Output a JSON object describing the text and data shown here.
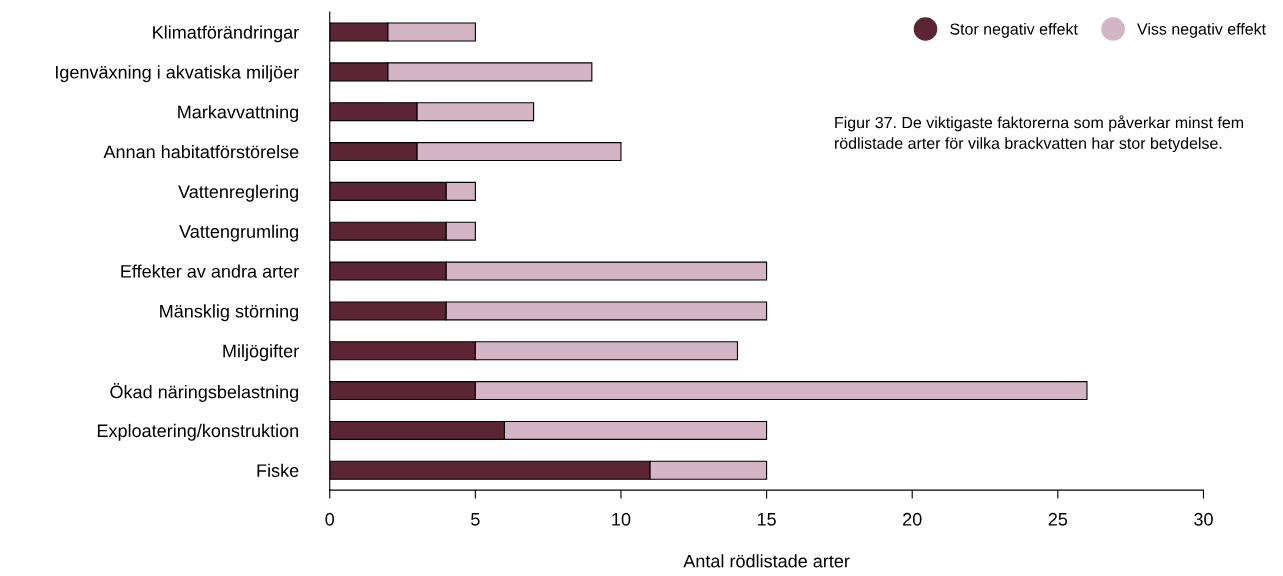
{
  "chart_data": {
    "type": "bar",
    "orientation": "horizontal",
    "stacked": true,
    "categories": [
      "Klimatförändringar",
      "Igenväxning i akvatiska miljöer",
      "Markavvattning",
      "Annan habitatförstörelse",
      "Vattenreglering",
      "Vattengrumling",
      "Effekter av andra arter",
      "Mänsklig störning",
      "Miljögifter",
      "Ökad näringsbelastning",
      "Exploatering/konstruktion",
      "Fiske"
    ],
    "series": [
      {
        "name": "Stor negativ effekt",
        "color": "#5c2535",
        "values": [
          2,
          2,
          3,
          3,
          4,
          4,
          4,
          4,
          5,
          5,
          6,
          11
        ]
      },
      {
        "name": "Viss negativ effekt",
        "color": "#d4b5c5",
        "values": [
          3,
          7,
          4,
          7,
          1,
          1,
          11,
          11,
          9,
          21,
          9,
          4
        ]
      }
    ],
    "xlabel": "Antal rödlistade arter",
    "xlim": [
      0,
      30
    ],
    "xticks": [
      0,
      5,
      10,
      15,
      20,
      25,
      30
    ],
    "grid": false,
    "legend": "top right",
    "annotations": [
      "Figur 37. De viktigaste faktorerna som påverkar minst fem rödlistade arter för vilka brackvatten har stor betydelse."
    ]
  }
}
